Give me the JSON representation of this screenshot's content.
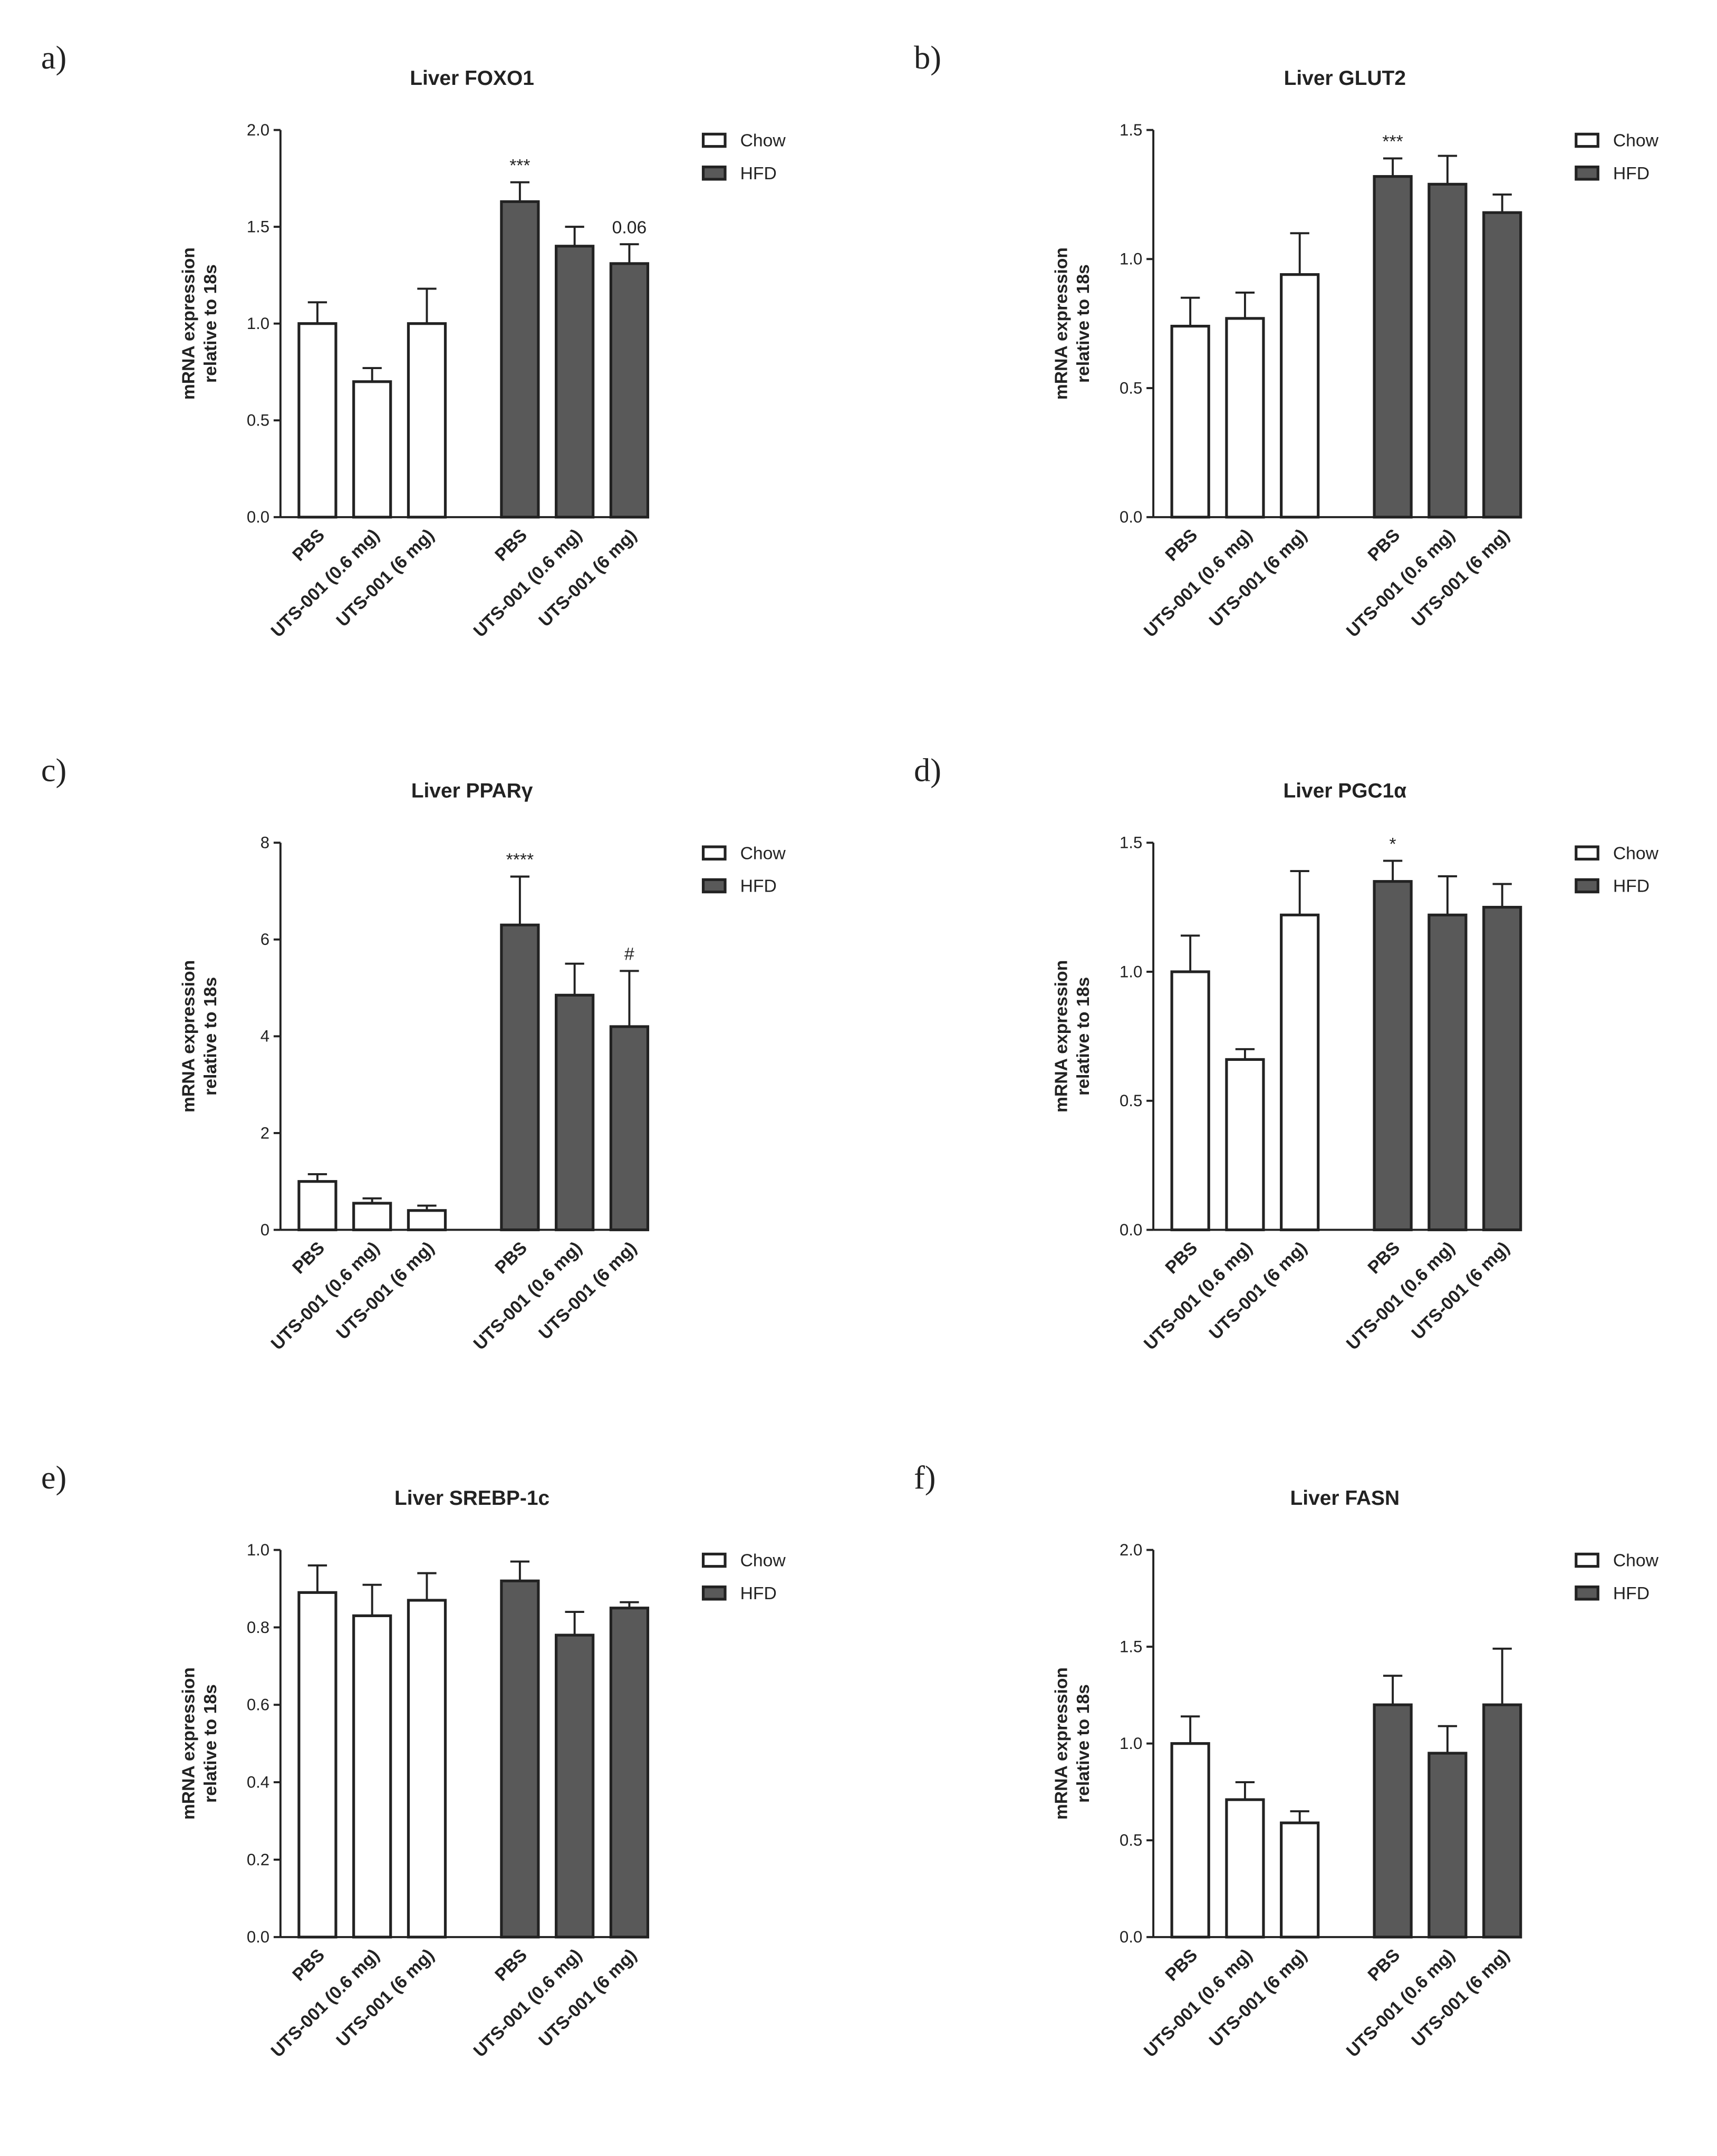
{
  "chart_data": [
    {
      "type": "bar",
      "panel": "a)",
      "title": "Liver FOXO1",
      "ylabel": [
        "mRNA expression",
        "relative to 18s"
      ],
      "categories": [
        "PBS",
        "UTS-001 (0.6 mg)",
        "UTS-001 (6 mg)",
        "PBS",
        "UTS-001 (0.6 mg)",
        "UTS-001 (6 mg)"
      ],
      "series": [
        {
          "name": "Chow",
          "color": "#ffffff",
          "values": [
            1.0,
            0.7,
            1.0,
            null,
            null,
            null
          ],
          "errors": [
            0.11,
            0.07,
            0.18,
            null,
            null,
            null
          ]
        },
        {
          "name": "HFD",
          "color": "#595959",
          "values": [
            null,
            null,
            null,
            1.63,
            1.4,
            1.31
          ],
          "errors": [
            null,
            null,
            null,
            0.1,
            0.1,
            0.1
          ]
        }
      ],
      "annotations": [
        {
          "text": "***",
          "category": 3
        },
        {
          "text": "0.06",
          "category": 5
        }
      ],
      "ylim": [
        0,
        2
      ],
      "yticks": [
        {
          "value": 0,
          "label": "0.0"
        },
        {
          "value": 0.5,
          "label": "0.5"
        },
        {
          "value": 1,
          "label": "1.0"
        },
        {
          "value": 1.5,
          "label": "1.5"
        },
        {
          "value": 2,
          "label": "2.0"
        }
      ]
    },
    {
      "type": "bar",
      "panel": "b)",
      "title": "Liver GLUT2",
      "ylabel": [
        "mRNA expression",
        "relative to 18s"
      ],
      "categories": [
        "PBS",
        "UTS-001 (0.6 mg)",
        "UTS-001 (6 mg)",
        "PBS",
        "UTS-001 (0.6 mg)",
        "UTS-001 (6 mg)"
      ],
      "series": [
        {
          "name": "Chow",
          "color": "#ffffff",
          "values": [
            0.74,
            0.77,
            0.94,
            null,
            null,
            null
          ],
          "errors": [
            0.11,
            0.1,
            0.16,
            null,
            null,
            null
          ]
        },
        {
          "name": "HFD",
          "color": "#595959",
          "values": [
            null,
            null,
            null,
            1.32,
            1.29,
            1.18
          ],
          "errors": [
            null,
            null,
            null,
            0.07,
            0.11,
            0.07
          ]
        }
      ],
      "annotations": [
        {
          "text": "***",
          "category": 3
        }
      ],
      "ylim": [
        0,
        1.5
      ],
      "yticks": [
        {
          "value": 0,
          "label": "0.0"
        },
        0.5,
        {
          "value": 1,
          "label": "1.0"
        },
        1.5
      ]
    },
    {
      "type": "bar",
      "panel": "c)",
      "title": "Liver PPARγ",
      "ylabel": [
        "mRNA expression",
        "relative to 18s"
      ],
      "categories": [
        "PBS",
        "UTS-001 (0.6 mg)",
        "UTS-001 (6 mg)",
        "PBS",
        "UTS-001 (0.6 mg)",
        "UTS-001 (6 mg)"
      ],
      "series": [
        {
          "name": "Chow",
          "color": "#ffffff",
          "values": [
            1.0,
            0.55,
            0.4,
            null,
            null,
            null
          ],
          "errors": [
            0.15,
            0.1,
            0.1,
            null,
            null,
            null
          ]
        },
        {
          "name": "HFD",
          "color": "#595959",
          "values": [
            null,
            null,
            null,
            6.3,
            4.85,
            4.2
          ],
          "errors": [
            null,
            null,
            null,
            1.0,
            0.65,
            1.15
          ]
        }
      ],
      "annotations": [
        {
          "text": "****",
          "category": 3
        },
        {
          "text": "#",
          "category": 5
        }
      ],
      "ylim": [
        0,
        8
      ],
      "yticks": [
        0,
        2,
        4,
        6,
        8
      ]
    },
    {
      "type": "bar",
      "panel": "d)",
      "title": "Liver PGC1α",
      "ylabel": [
        "mRNA expression",
        "relative to 18s"
      ],
      "categories": [
        "PBS",
        "UTS-001 (0.6 mg)",
        "UTS-001 (6 mg)",
        "PBS",
        "UTS-001 (0.6 mg)",
        "UTS-001 (6 mg)"
      ],
      "series": [
        {
          "name": "Chow",
          "color": "#ffffff",
          "values": [
            1.0,
            0.66,
            1.22,
            null,
            null,
            null
          ],
          "errors": [
            0.14,
            0.04,
            0.17,
            null,
            null,
            null
          ]
        },
        {
          "name": "HFD",
          "color": "#595959",
          "values": [
            null,
            null,
            null,
            1.35,
            1.22,
            1.25
          ],
          "errors": [
            null,
            null,
            null,
            0.08,
            0.15,
            0.09
          ]
        }
      ],
      "annotations": [
        {
          "text": "*",
          "category": 3
        }
      ],
      "ylim": [
        0,
        1.5
      ],
      "yticks": [
        {
          "value": 0,
          "label": "0.0"
        },
        0.5,
        {
          "value": 1,
          "label": "1.0"
        },
        1.5
      ]
    },
    {
      "type": "bar",
      "panel": "e)",
      "title": "Liver SREBP-1c",
      "ylabel": [
        "mRNA expression",
        "relative to 18s"
      ],
      "categories": [
        "PBS",
        "UTS-001 (0.6 mg)",
        "UTS-001 (6 mg)",
        "PBS",
        "UTS-001 (0.6 mg)",
        "UTS-001 (6 mg)"
      ],
      "series": [
        {
          "name": "Chow",
          "color": "#ffffff",
          "values": [
            0.89,
            0.83,
            0.87,
            null,
            null,
            null
          ],
          "errors": [
            0.07,
            0.08,
            0.07,
            null,
            null,
            null
          ]
        },
        {
          "name": "HFD",
          "color": "#595959",
          "values": [
            null,
            null,
            null,
            0.92,
            0.78,
            0.85
          ],
          "errors": [
            null,
            null,
            null,
            0.05,
            0.06,
            0.015
          ]
        }
      ],
      "annotations": [],
      "ylim": [
        0,
        1
      ],
      "yticks": [
        {
          "value": 0,
          "label": "0.0"
        },
        0.2,
        0.4,
        0.6,
        0.8,
        {
          "value": 1,
          "label": "1.0"
        }
      ]
    },
    {
      "type": "bar",
      "panel": "f)",
      "title": "Liver FASN",
      "ylabel": [
        "mRNA expression",
        "relative to 18s"
      ],
      "categories": [
        "PBS",
        "UTS-001 (0.6 mg)",
        "UTS-001 (6 mg)",
        "PBS",
        "UTS-001 (0.6 mg)",
        "UTS-001 (6 mg)"
      ],
      "series": [
        {
          "name": "Chow",
          "color": "#ffffff",
          "values": [
            1.0,
            0.71,
            0.59,
            null,
            null,
            null
          ],
          "errors": [
            0.14,
            0.09,
            0.06,
            null,
            null,
            null
          ]
        },
        {
          "name": "HFD",
          "color": "#595959",
          "values": [
            null,
            null,
            null,
            1.2,
            0.95,
            1.2
          ],
          "errors": [
            null,
            null,
            null,
            0.15,
            0.14,
            0.29
          ]
        }
      ],
      "annotations": [],
      "ylim": [
        0,
        2
      ],
      "yticks": [
        {
          "value": 0,
          "label": "0.0"
        },
        {
          "value": 0.5,
          "label": "0.5"
        },
        {
          "value": 1,
          "label": "1.0"
        },
        {
          "value": 1.5,
          "label": "1.5"
        },
        {
          "value": 2,
          "label": "2.0"
        }
      ]
    }
  ]
}
